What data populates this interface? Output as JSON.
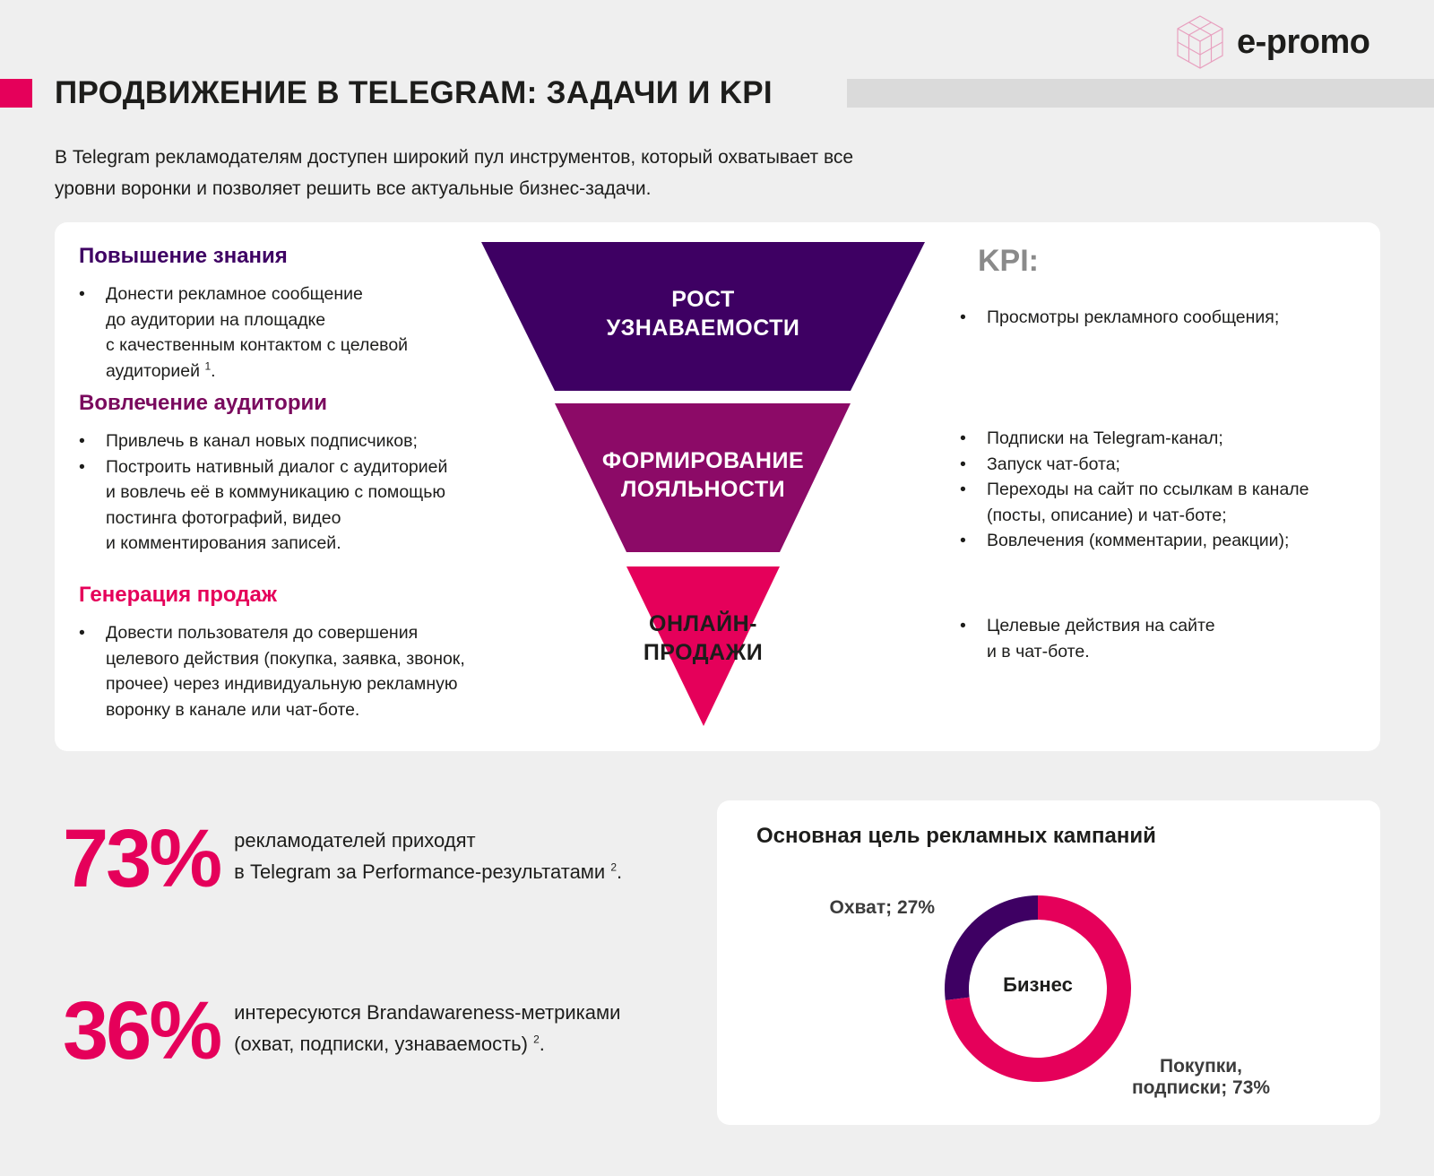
{
  "header": {
    "title": "ПРОДВИЖЕНИЕ В TELEGRAM: ЗАДАЧИ И KPI",
    "logo_text": "e-promo",
    "logo_icon": "cube-grid-icon",
    "intro_line1": "В Telegram рекламодателям доступен широкий пул инструментов, который охватывает все",
    "intro_line2": "уровни воронки и позволяет решить все актуальные бизнес-задачи."
  },
  "colors": {
    "accent": "#e5005a",
    "stage1": "#3e0063",
    "stage2": "#8c0a67",
    "stage3": "#e5005a"
  },
  "tasks": [
    {
      "heading": "Повышение знания",
      "heading_color": "#3e0063",
      "bullets": [
        {
          "lines": [
            "Донести рекламное сообщение",
            "до аудитории на площадке",
            "с качественным контактом с целевой",
            "аудиторией"
          ],
          "sup": "1",
          "tail": "."
        }
      ]
    },
    {
      "heading": "Вовлечение аудитории",
      "heading_color": "#7a0a5e",
      "bullets": [
        {
          "lines": [
            "Привлечь в канал новых подписчиков;"
          ]
        },
        {
          "lines": [
            "Построить нативный диалог с аудиторией",
            "и вовлечь её в коммуникацию с помощью",
            "постинга фотографий, видео",
            "и комментирования записей."
          ]
        }
      ]
    },
    {
      "heading": "Генерация продаж",
      "heading_color": "#e5005a",
      "bullets": [
        {
          "lines": [
            "Довести пользователя до совершения",
            "целевого действия (покупка, заявка, звонок,",
            "прочее) через индивидуальную рекламную",
            "воронку в канале или чат-боте."
          ]
        }
      ]
    }
  ],
  "funnel": [
    {
      "line1": "РОСТ",
      "line2": "УЗНАВАЕМОСТИ"
    },
    {
      "line1": "ФОРМИРОВАНИЕ",
      "line2": "ЛОЯЛЬНОСТИ"
    },
    {
      "line1": "ОНЛАЙН-",
      "line2": "ПРОДАЖИ"
    }
  ],
  "kpi": {
    "title": "KPI:",
    "groups": [
      {
        "items": [
          [
            "Просмотры рекламного сообщения;"
          ]
        ]
      },
      {
        "items": [
          [
            "Подписки на Telegram-канал;"
          ],
          [
            "Запуск чат-бота;"
          ],
          [
            "Переходы на сайт по ссылкам в канале",
            "(посты, описание) и чат-боте;"
          ],
          [
            "Вовлечения (комментарии, реакции);"
          ]
        ]
      },
      {
        "items": [
          [
            "Целевые действия на сайте",
            "и в чат-боте."
          ]
        ]
      }
    ]
  },
  "stats": [
    {
      "value": "73%",
      "line1": "рекламодателей приходят",
      "line2": "в Telegram за Performance-результатами",
      "sup": "2",
      "tail": "."
    },
    {
      "value": "36%",
      "line1": "интересуются Brandawareness-метриками",
      "line2": "(охват, подписки, узнаваемость)",
      "sup": "2",
      "tail": "."
    }
  ],
  "chart_data": {
    "type": "pie",
    "title": "Основная цель рекламных кампаний",
    "center_label": "Бизнес",
    "slices": [
      {
        "label": "Охват",
        "value": 27,
        "display": "Охват; 27%",
        "color": "#3e0063"
      },
      {
        "label": "Покупки, подписки",
        "value": 73,
        "display_line1": "Покупки,",
        "display_line2": "подписки; 73%",
        "color": "#e5005a"
      }
    ]
  }
}
